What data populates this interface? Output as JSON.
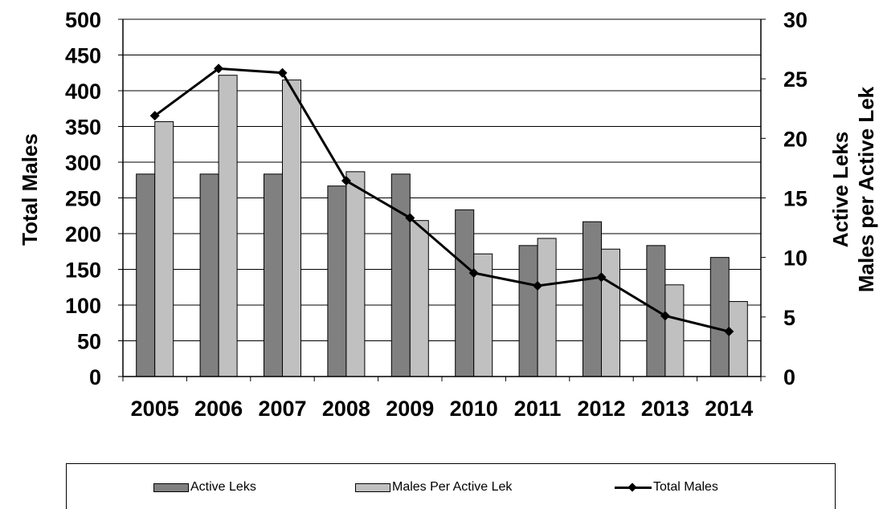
{
  "chart_data": {
    "type": "bar",
    "categories": [
      "2005",
      "2006",
      "2007",
      "2008",
      "2009",
      "2010",
      "2011",
      "2012",
      "2013",
      "2014"
    ],
    "series": [
      {
        "name": "Active Leks",
        "axis": "right",
        "type": "bar",
        "color": "#808080",
        "values": [
          17,
          17,
          17,
          16,
          17,
          14,
          11,
          13,
          11,
          10
        ]
      },
      {
        "name": "Males Per Active Lek",
        "axis": "right",
        "type": "bar",
        "color": "#c0c0c0",
        "values": [
          21.4,
          25.3,
          24.9,
          17.2,
          13.1,
          10.3,
          11.6,
          10.7,
          7.7,
          6.3
        ]
      },
      {
        "name": "Total Males",
        "axis": "left",
        "type": "line",
        "color": "#000000",
        "values": [
          365,
          431,
          425,
          274,
          222,
          145,
          127,
          139,
          85,
          63
        ]
      }
    ],
    "ylabel": "Total Males",
    "ylabel_right": [
      "Active Leks",
      "Males per Active Lek"
    ],
    "ylim": [
      0,
      500
    ],
    "ylim_right": [
      0,
      30
    ],
    "yticks": [
      "0",
      "50",
      "100",
      "150",
      "200",
      "250",
      "300",
      "350",
      "400",
      "450",
      "500"
    ],
    "yticks_right": [
      "0",
      "5",
      "10",
      "15",
      "20",
      "25",
      "30"
    ],
    "grid": true,
    "legend_position": "bottom"
  },
  "legend": {
    "active_leks": "Active Leks",
    "males_per_lek": "Males Per Active Lek",
    "total_males": "Total Males"
  }
}
